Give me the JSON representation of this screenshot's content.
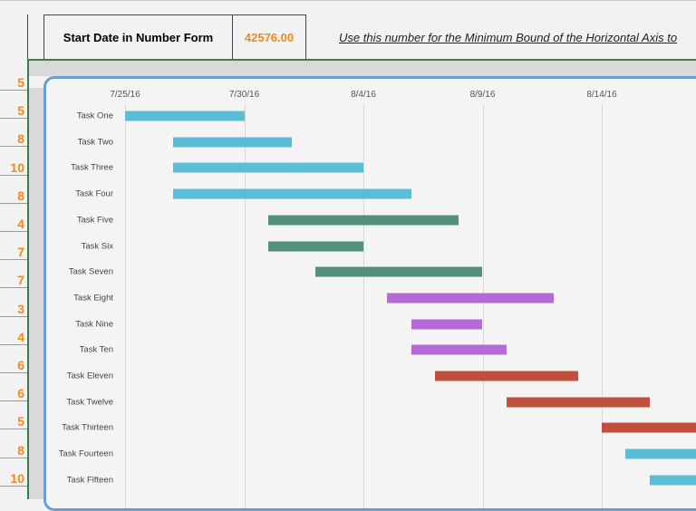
{
  "header": {
    "start_label": "Start Date in Number Form",
    "start_value": "42576.00",
    "note": "Use this number for the Minimum Bound of the Horizontal Axis to"
  },
  "durations_column": [
    "5",
    "5",
    "8",
    "10",
    "8",
    "4",
    "7",
    "7",
    "3",
    "4",
    "6",
    "6",
    "5",
    "8",
    "10"
  ],
  "colors": {
    "accent_orange": "#f08a1c",
    "grid_border": "#3a7d4e",
    "chart_border": "#6a9fd4"
  },
  "chart_data": {
    "type": "bar",
    "orientation": "horizontal-gantt",
    "x_axis": {
      "type": "date",
      "min": "7/25/16",
      "ticks": [
        "7/25/16",
        "7/30/16",
        "8/4/16",
        "8/9/16",
        "8/14/16"
      ],
      "position": "top",
      "grid": true
    },
    "tasks": [
      {
        "name": "Task One",
        "start": "2016-07-25",
        "days": 5,
        "color": "#5bbcd6"
      },
      {
        "name": "Task Two",
        "start": "2016-07-27",
        "days": 5,
        "color": "#5bbcd6"
      },
      {
        "name": "Task Three",
        "start": "2016-07-27",
        "days": 8,
        "color": "#5bbcd6"
      },
      {
        "name": "Task Four",
        "start": "2016-07-27",
        "days": 10,
        "color": "#5bbcd6"
      },
      {
        "name": "Task Five",
        "start": "2016-07-31",
        "days": 8,
        "color": "#55917a"
      },
      {
        "name": "Task Six",
        "start": "2016-07-31",
        "days": 4,
        "color": "#55917a"
      },
      {
        "name": "Task Seven",
        "start": "2016-08-02",
        "days": 7,
        "color": "#55917a"
      },
      {
        "name": "Task Eight",
        "start": "2016-08-05",
        "days": 7,
        "color": "#b56ad8"
      },
      {
        "name": "Task Nine",
        "start": "2016-08-06",
        "days": 3,
        "color": "#b56ad8"
      },
      {
        "name": "Task Ten",
        "start": "2016-08-06",
        "days": 4,
        "color": "#b56ad8"
      },
      {
        "name": "Task Eleven",
        "start": "2016-08-07",
        "days": 6,
        "color": "#c0503c"
      },
      {
        "name": "Task Twelve",
        "start": "2016-08-10",
        "days": 6,
        "color": "#c0503c"
      },
      {
        "name": "Task Thirteen",
        "start": "2016-08-14",
        "days": 5,
        "color": "#c0503c"
      },
      {
        "name": "Task Fourteen",
        "start": "2016-08-15",
        "days": 8,
        "color": "#5bbcd6"
      },
      {
        "name": "Task Fifteen",
        "start": "2016-08-16",
        "days": 10,
        "color": "#5bbcd6"
      }
    ]
  }
}
